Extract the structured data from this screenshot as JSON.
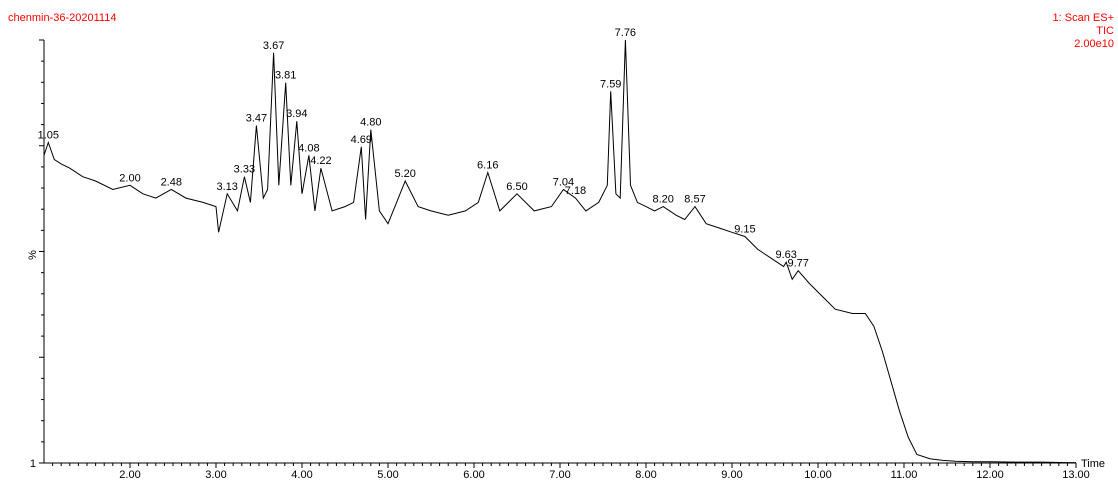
{
  "header": {
    "sample_name": "chenmin-36-20201114",
    "scan_function": "1: Scan ES+",
    "trace_type": "TIC",
    "intensity_max": "2.00e10"
  },
  "colors": {
    "header_text": "#ff0000",
    "trace": "#000000",
    "axes": "#000000"
  },
  "chart_data": {
    "type": "line",
    "title": "",
    "xlabel": "Time",
    "ylabel": "%",
    "xlim": [
      1.0,
      13.0
    ],
    "ylim": [
      1,
      100
    ],
    "y_min_label": "1",
    "x_ticks": [
      "2.00",
      "3.00",
      "4.00",
      "5.00",
      "6.00",
      "7.00",
      "8.00",
      "9.00",
      "10.00",
      "11.00",
      "12.00",
      "13.00"
    ],
    "grid": false,
    "peaks": [
      {
        "rt": "1.05",
        "y": 76
      },
      {
        "rt": "2.00",
        "y": 66
      },
      {
        "rt": "2.48",
        "y": 65
      },
      {
        "rt": "3.13",
        "y": 64
      },
      {
        "rt": "3.33",
        "y": 68
      },
      {
        "rt": "3.47",
        "y": 80
      },
      {
        "rt": "3.67",
        "y": 97
      },
      {
        "rt": "3.81",
        "y": 90
      },
      {
        "rt": "3.94",
        "y": 81
      },
      {
        "rt": "4.08",
        "y": 73
      },
      {
        "rt": "4.22",
        "y": 70
      },
      {
        "rt": "4.69",
        "y": 75
      },
      {
        "rt": "4.80",
        "y": 79
      },
      {
        "rt": "5.20",
        "y": 67
      },
      {
        "rt": "6.16",
        "y": 69
      },
      {
        "rt": "6.50",
        "y": 64
      },
      {
        "rt": "7.04",
        "y": 65
      },
      {
        "rt": "7.18",
        "y": 63
      },
      {
        "rt": "7.59",
        "y": 88
      },
      {
        "rt": "7.76",
        "y": 100
      },
      {
        "rt": "8.20",
        "y": 61
      },
      {
        "rt": "8.57",
        "y": 61
      },
      {
        "rt": "9.15",
        "y": 54
      },
      {
        "rt": "9.63",
        "y": 48
      },
      {
        "rt": "9.77",
        "y": 46
      }
    ],
    "series": [
      {
        "x": [
          1.0,
          1.05,
          1.12,
          1.2,
          1.3,
          1.45,
          1.6,
          1.8,
          2.0,
          2.15,
          2.3,
          2.48,
          2.65,
          2.85,
          3.0,
          3.03,
          3.13,
          3.25,
          3.33,
          3.4,
          3.47,
          3.55,
          3.6,
          3.67,
          3.73,
          3.81,
          3.87,
          3.94,
          4.0,
          4.08,
          4.15,
          4.22,
          4.35,
          4.5,
          4.6,
          4.69,
          4.74,
          4.8,
          4.9,
          5.0,
          5.1,
          5.2,
          5.35,
          5.5,
          5.7,
          5.9,
          6.05,
          6.16,
          6.3,
          6.5,
          6.7,
          6.9,
          7.04,
          7.18,
          7.3,
          7.45,
          7.55,
          7.59,
          7.65,
          7.7,
          7.76,
          7.82,
          7.9,
          8.0,
          8.1,
          8.2,
          8.35,
          8.45,
          8.57,
          8.7,
          8.85,
          9.0,
          9.15,
          9.3,
          9.45,
          9.6,
          9.63,
          9.7,
          9.77,
          9.9,
          10.05,
          10.2,
          10.4,
          10.55,
          10.65,
          10.75,
          10.85,
          10.95,
          11.05,
          11.15,
          11.3,
          11.45,
          11.6,
          11.8,
          12.0,
          12.3,
          12.6,
          12.9,
          13.0
        ],
        "y": [
          73,
          76,
          72,
          71,
          70,
          68,
          67,
          65,
          66,
          64,
          63,
          65,
          63,
          62,
          61,
          55,
          64,
          60,
          68,
          62,
          80,
          63,
          65,
          97,
          66,
          90,
          66,
          81,
          64,
          73,
          60,
          70,
          60,
          61,
          62,
          75,
          58,
          79,
          60,
          57,
          62,
          67,
          61,
          60,
          59,
          60,
          62,
          69,
          60,
          64,
          60,
          61,
          65,
          63,
          60,
          62,
          66,
          88,
          64,
          63,
          100,
          66,
          62,
          61,
          60,
          61,
          59,
          58,
          61,
          57,
          56,
          55,
          54,
          51,
          49,
          47,
          48,
          44,
          46,
          43,
          40,
          37,
          36,
          36,
          33,
          27,
          20,
          13,
          7,
          3,
          2,
          1.6,
          1.4,
          1.3,
          1.3,
          1.2,
          1.2,
          1.1,
          1.1
        ]
      }
    ]
  }
}
